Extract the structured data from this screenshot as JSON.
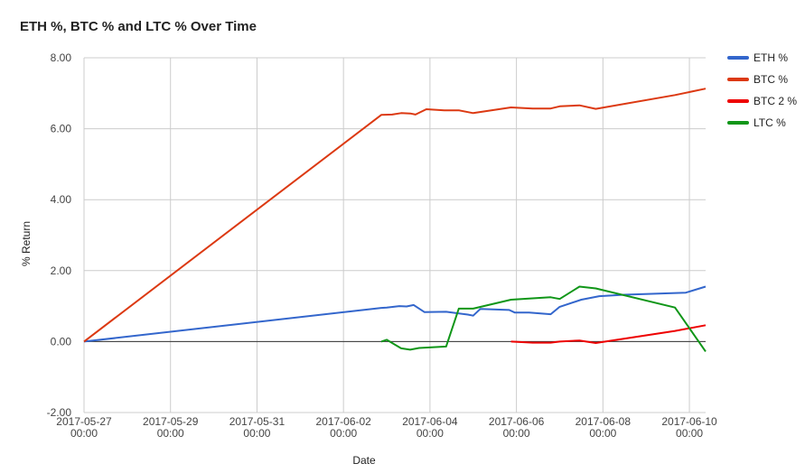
{
  "chart_data": {
    "type": "line",
    "title": "ETH %, BTC % and LTC % Over Time",
    "xlabel": "Date",
    "ylabel": "% Return",
    "ylim": [
      -2,
      8
    ],
    "yticks": [
      "8.00",
      "6.00",
      "4.00",
      "2.00",
      "0.00",
      "-2.00"
    ],
    "xlim": [
      "2017-05-27T00:00",
      "2017-06-10T09:00"
    ],
    "xticks": [
      {
        "date": "2017-05-27T00:00",
        "line1": "2017-05-27",
        "line2": "00:00"
      },
      {
        "date": "2017-05-29T00:00",
        "line1": "2017-05-29",
        "line2": "00:00"
      },
      {
        "date": "2017-05-31T00:00",
        "line1": "2017-05-31",
        "line2": "00:00"
      },
      {
        "date": "2017-06-02T00:00",
        "line1": "2017-06-02",
        "line2": "00:00"
      },
      {
        "date": "2017-06-04T00:00",
        "line1": "2017-06-04",
        "line2": "00:00"
      },
      {
        "date": "2017-06-06T00:00",
        "line1": "2017-06-06",
        "line2": "00:00"
      },
      {
        "date": "2017-06-08T00:00",
        "line1": "2017-06-08",
        "line2": "00:00"
      },
      {
        "date": "2017-06-10T00:00",
        "line1": "2017-06-10",
        "line2": "00:00"
      }
    ],
    "grid": true,
    "legend_position": "right",
    "series": [
      {
        "name": "ETH %",
        "color": "#3366cc",
        "points": [
          [
            "2017-05-27T00:00",
            0.0
          ],
          [
            "2017-06-02T21:00",
            0.95
          ],
          [
            "2017-06-03T00:00",
            0.96
          ],
          [
            "2017-06-03T07:00",
            1.0
          ],
          [
            "2017-06-03T11:00",
            0.99
          ],
          [
            "2017-06-03T15:00",
            1.03
          ],
          [
            "2017-06-03T21:00",
            0.83
          ],
          [
            "2017-06-04T09:00",
            0.84
          ],
          [
            "2017-06-04T21:00",
            0.76
          ],
          [
            "2017-06-05T00:00",
            0.73
          ],
          [
            "2017-06-05T04:00",
            0.92
          ],
          [
            "2017-06-05T20:00",
            0.89
          ],
          [
            "2017-06-05T23:00",
            0.82
          ],
          [
            "2017-06-06T07:00",
            0.82
          ],
          [
            "2017-06-06T19:00",
            0.77
          ],
          [
            "2017-06-07T00:00",
            0.98
          ],
          [
            "2017-06-07T12:00",
            1.18
          ],
          [
            "2017-06-07T22:00",
            1.28
          ],
          [
            "2017-06-08T12:00",
            1.32
          ],
          [
            "2017-06-09T22:00",
            1.38
          ],
          [
            "2017-06-10T09:00",
            1.55
          ]
        ]
      },
      {
        "name": "BTC %",
        "color": "#dc3912",
        "points": [
          [
            "2017-05-27T00:00",
            0.0
          ],
          [
            "2017-06-02T21:00",
            6.39
          ],
          [
            "2017-06-03T03:00",
            6.4
          ],
          [
            "2017-06-03T08:00",
            6.44
          ],
          [
            "2017-06-03T13:00",
            6.43
          ],
          [
            "2017-06-03T16:00",
            6.4
          ],
          [
            "2017-06-03T22:00",
            6.55
          ],
          [
            "2017-06-04T08:00",
            6.52
          ],
          [
            "2017-06-04T16:00",
            6.52
          ],
          [
            "2017-06-05T00:00",
            6.44
          ],
          [
            "2017-06-05T21:00",
            6.6
          ],
          [
            "2017-06-06T09:00",
            6.57
          ],
          [
            "2017-06-06T19:00",
            6.57
          ],
          [
            "2017-06-07T00:00",
            6.63
          ],
          [
            "2017-06-07T11:00",
            6.66
          ],
          [
            "2017-06-07T20:00",
            6.56
          ],
          [
            "2017-06-09T16:00",
            6.95
          ],
          [
            "2017-06-10T09:00",
            7.13
          ]
        ]
      },
      {
        "name": "BTC 2 %",
        "color": "#ee0000",
        "points": [
          [
            "2017-06-05T21:00",
            0.0
          ],
          [
            "2017-06-06T09:00",
            -0.03
          ],
          [
            "2017-06-06T19:00",
            -0.03
          ],
          [
            "2017-06-07T00:00",
            0.0
          ],
          [
            "2017-06-07T11:00",
            0.03
          ],
          [
            "2017-06-07T20:00",
            -0.04
          ],
          [
            "2017-06-09T16:00",
            0.3
          ],
          [
            "2017-06-10T09:00",
            0.46
          ]
        ]
      },
      {
        "name": "LTC %",
        "color": "#109618",
        "points": [
          [
            "2017-06-02T21:00",
            0.0
          ],
          [
            "2017-06-03T00:00",
            0.05
          ],
          [
            "2017-06-03T08:00",
            -0.19
          ],
          [
            "2017-06-03T13:00",
            -0.23
          ],
          [
            "2017-06-03T18:00",
            -0.18
          ],
          [
            "2017-06-04T09:00",
            -0.14
          ],
          [
            "2017-06-04T16:00",
            0.93
          ],
          [
            "2017-06-05T00:00",
            0.93
          ],
          [
            "2017-06-05T21:00",
            1.18
          ],
          [
            "2017-06-06T19:00",
            1.25
          ],
          [
            "2017-06-07T00:00",
            1.2
          ],
          [
            "2017-06-07T11:00",
            1.55
          ],
          [
            "2017-06-07T20:00",
            1.5
          ],
          [
            "2017-06-09T16:00",
            0.96
          ],
          [
            "2017-06-10T09:00",
            -0.28
          ]
        ]
      }
    ]
  }
}
